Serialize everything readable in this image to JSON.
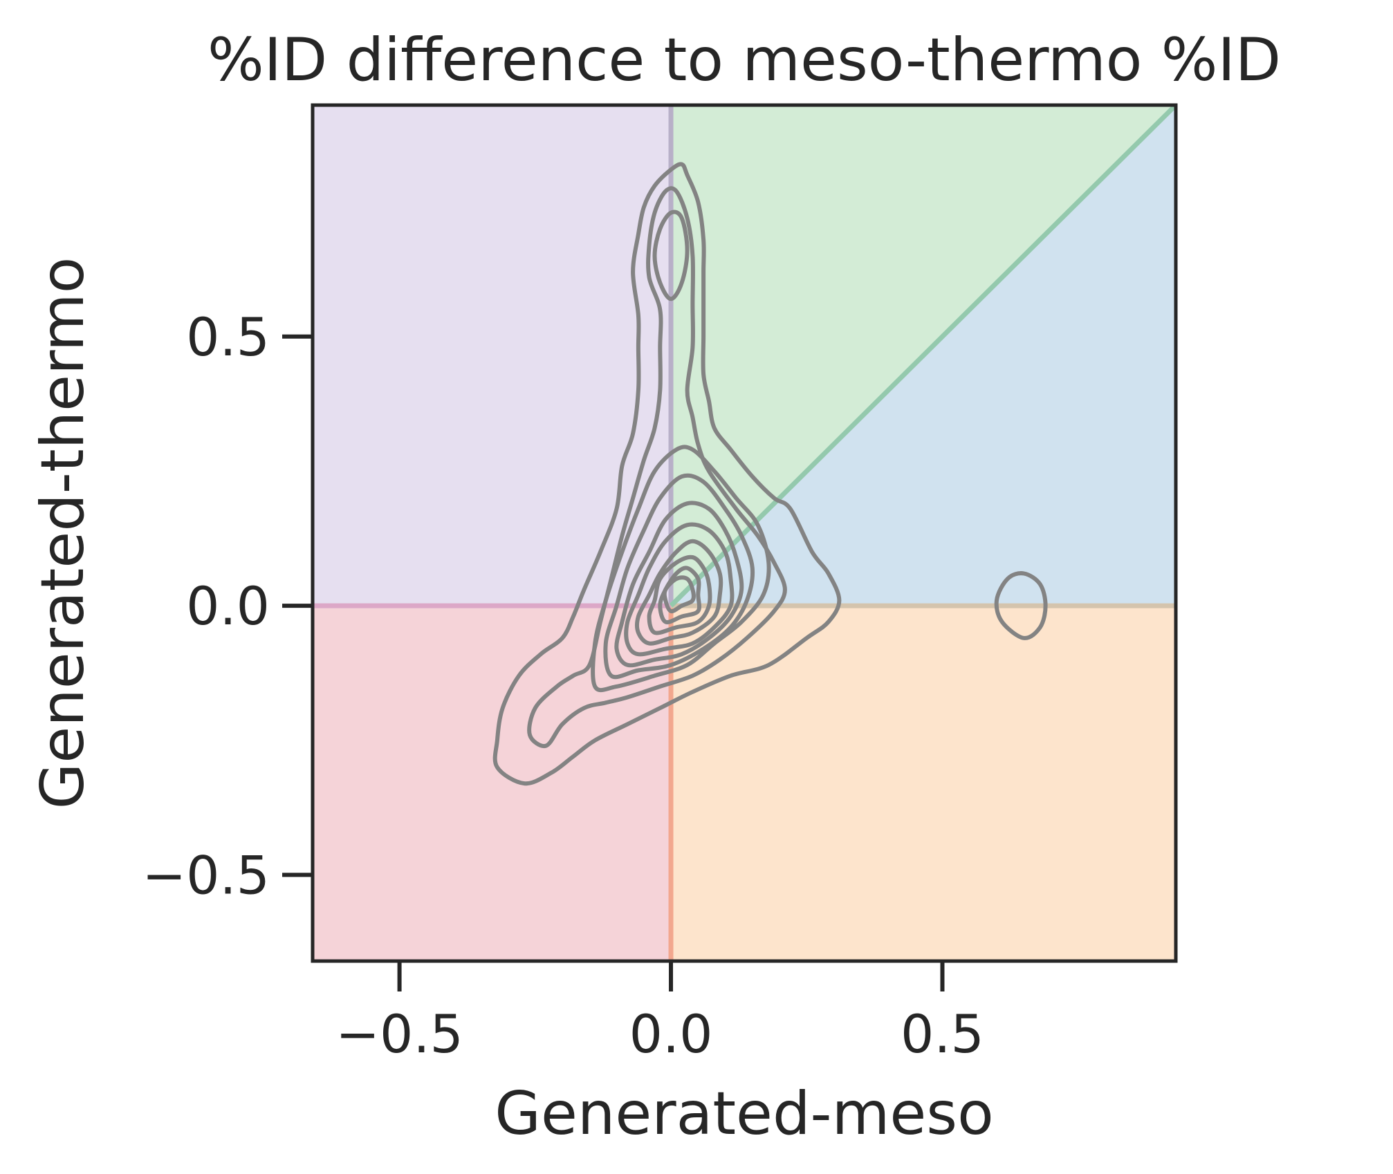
{
  "chart_data": {
    "type": "kde_contour",
    "title": "%ID difference to meso-thermo %ID",
    "xlabel": "Generated-meso",
    "ylabel": "Generated-thermo",
    "xlim": [
      -0.66,
      0.93
    ],
    "ylim": [
      -0.66,
      0.93
    ],
    "x_ticks": [
      -0.5,
      0.0,
      0.5
    ],
    "y_ticks": [
      -0.5,
      0.0,
      0.5
    ],
    "x_tick_labels": [
      "−0.5",
      "0.0",
      "0.5"
    ],
    "y_tick_labels": [
      "−0.5",
      "0.0",
      "0.5"
    ],
    "grid": false,
    "regions": [
      {
        "name": "upper-left",
        "polygon": [
          [
            -0.66,
            0
          ],
          [
            0,
            0
          ],
          [
            0,
            0.93
          ],
          [
            -0.66,
            0.93
          ]
        ],
        "color": "#e6dff0"
      },
      {
        "name": "upper-diagonal",
        "polygon": [
          [
            0,
            0
          ],
          [
            0.93,
            0.93
          ],
          [
            0,
            0.93
          ]
        ],
        "color": "#d3ecd6"
      },
      {
        "name": "lower-diagonal",
        "polygon": [
          [
            0,
            0
          ],
          [
            0.93,
            0
          ],
          [
            0.93,
            0.93
          ]
        ],
        "color": "#d0e2ef"
      },
      {
        "name": "lower-right",
        "polygon": [
          [
            0,
            -0.66
          ],
          [
            0.93,
            -0.66
          ],
          [
            0.93,
            0
          ],
          [
            0,
            0
          ]
        ],
        "color": "#fde4cc"
      },
      {
        "name": "lower-left",
        "polygon": [
          [
            -0.66,
            -0.66
          ],
          [
            0,
            -0.66
          ],
          [
            0,
            0
          ],
          [
            -0.66,
            0
          ]
        ],
        "color": "#f5d3d8"
      }
    ],
    "boundaries": [
      {
        "name": "vertical-upper",
        "points": [
          [
            0,
            0
          ],
          [
            0,
            0.93
          ]
        ],
        "color": "#b8b0c8"
      },
      {
        "name": "vertical-lower",
        "points": [
          [
            0,
            -0.66
          ],
          [
            0,
            0
          ]
        ],
        "color": "#f2a78e"
      },
      {
        "name": "horizontal-left",
        "points": [
          [
            -0.66,
            0
          ],
          [
            0,
            0
          ]
        ],
        "color": "#dca7c7"
      },
      {
        "name": "horizontal-right",
        "points": [
          [
            0,
            0
          ],
          [
            0.93,
            0
          ]
        ],
        "color": "#d4c4ad"
      },
      {
        "name": "diagonal",
        "points": [
          [
            0,
            0
          ],
          [
            0.93,
            0.93
          ]
        ],
        "color": "#94c9ad"
      }
    ],
    "contour_color": "#838383",
    "contours": [
      {
        "level": 1,
        "points": [
          [
            -0.27,
            -0.33
          ],
          [
            -0.22,
            -0.31
          ],
          [
            -0.18,
            -0.28
          ],
          [
            -0.14,
            -0.25
          ],
          [
            -0.08,
            -0.22
          ],
          [
            -0.02,
            -0.19
          ],
          [
            0.04,
            -0.16
          ],
          [
            0.11,
            -0.13
          ],
          [
            0.18,
            -0.11
          ],
          [
            0.25,
            -0.06
          ],
          [
            0.29,
            -0.03
          ],
          [
            0.31,
            0.01
          ],
          [
            0.29,
            0.06
          ],
          [
            0.26,
            0.1
          ],
          [
            0.22,
            0.18
          ],
          [
            0.19,
            0.2
          ],
          [
            0.15,
            0.24
          ],
          [
            0.11,
            0.29
          ],
          [
            0.08,
            0.33
          ],
          [
            0.07,
            0.38
          ],
          [
            0.06,
            0.43
          ],
          [
            0.06,
            0.5
          ],
          [
            0.06,
            0.55
          ],
          [
            0.06,
            0.62
          ],
          [
            0.06,
            0.68
          ],
          [
            0.05,
            0.75
          ],
          [
            0.03,
            0.8
          ],
          [
            0.02,
            0.82
          ],
          [
            0.0,
            0.81
          ],
          [
            -0.03,
            0.78
          ],
          [
            -0.05,
            0.74
          ],
          [
            -0.06,
            0.69
          ],
          [
            -0.07,
            0.62
          ],
          [
            -0.06,
            0.54
          ],
          [
            -0.06,
            0.48
          ],
          [
            -0.06,
            0.4
          ],
          [
            -0.07,
            0.32
          ],
          [
            -0.09,
            0.26
          ],
          [
            -0.1,
            0.18
          ],
          [
            -0.13,
            0.1
          ],
          [
            -0.16,
            0.03
          ],
          [
            -0.18,
            -0.02
          ],
          [
            -0.2,
            -0.06
          ],
          [
            -0.24,
            -0.09
          ],
          [
            -0.28,
            -0.13
          ],
          [
            -0.31,
            -0.19
          ],
          [
            -0.32,
            -0.25
          ],
          [
            -0.32,
            -0.3
          ],
          [
            -0.27,
            -0.33
          ]
        ]
      },
      {
        "level": 2,
        "points": [
          [
            -0.23,
            -0.26
          ],
          [
            -0.2,
            -0.22
          ],
          [
            -0.16,
            -0.19
          ],
          [
            -0.12,
            -0.18
          ],
          [
            -0.08,
            -0.17
          ],
          [
            -0.02,
            -0.15
          ],
          [
            0.04,
            -0.13
          ],
          [
            0.09,
            -0.1
          ],
          [
            0.14,
            -0.06
          ],
          [
            0.19,
            -0.01
          ],
          [
            0.21,
            0.03
          ],
          [
            0.19,
            0.08
          ],
          [
            0.16,
            0.13
          ],
          [
            0.12,
            0.18
          ],
          [
            0.07,
            0.25
          ],
          [
            0.05,
            0.3
          ],
          [
            0.04,
            0.35
          ],
          [
            0.03,
            0.4
          ],
          [
            0.04,
            0.48
          ],
          [
            0.04,
            0.56
          ],
          [
            0.04,
            0.65
          ],
          [
            0.03,
            0.72
          ],
          [
            0.01,
            0.77
          ],
          [
            -0.01,
            0.77
          ],
          [
            -0.03,
            0.73
          ],
          [
            -0.04,
            0.67
          ],
          [
            -0.04,
            0.61
          ],
          [
            -0.02,
            0.55
          ],
          [
            -0.02,
            0.48
          ],
          [
            -0.02,
            0.4
          ],
          [
            -0.03,
            0.33
          ],
          [
            -0.05,
            0.27
          ],
          [
            -0.07,
            0.2
          ],
          [
            -0.09,
            0.13
          ],
          [
            -0.11,
            0.05
          ],
          [
            -0.13,
            -0.03
          ],
          [
            -0.15,
            -0.11
          ],
          [
            -0.18,
            -0.13
          ],
          [
            -0.21,
            -0.15
          ],
          [
            -0.25,
            -0.19
          ],
          [
            -0.26,
            -0.24
          ],
          [
            -0.23,
            -0.26
          ]
        ]
      },
      {
        "level": 3,
        "points": [
          [
            0.0,
            0.57
          ],
          [
            0.02,
            0.6
          ],
          [
            0.03,
            0.66
          ],
          [
            0.02,
            0.72
          ],
          [
            0.0,
            0.73
          ],
          [
            -0.02,
            0.7
          ],
          [
            -0.03,
            0.65
          ],
          [
            -0.02,
            0.6
          ],
          [
            0.0,
            0.57
          ]
        ]
      },
      {
        "level": 4,
        "points": [
          [
            -0.14,
            -0.15
          ],
          [
            -0.1,
            -0.15
          ],
          [
            -0.03,
            -0.13
          ],
          [
            0.03,
            -0.11
          ],
          [
            0.08,
            -0.07
          ],
          [
            0.13,
            -0.03
          ],
          [
            0.17,
            0.02
          ],
          [
            0.18,
            0.08
          ],
          [
            0.16,
            0.15
          ],
          [
            0.12,
            0.2
          ],
          [
            0.08,
            0.25
          ],
          [
            0.04,
            0.29
          ],
          [
            0.01,
            0.29
          ],
          [
            -0.03,
            0.25
          ],
          [
            -0.06,
            0.18
          ],
          [
            -0.09,
            0.1
          ],
          [
            -0.12,
            0.01
          ],
          [
            -0.14,
            -0.07
          ],
          [
            -0.14,
            -0.15
          ]
        ]
      },
      {
        "level": 5,
        "points": [
          [
            -0.11,
            -0.13
          ],
          [
            -0.06,
            -0.12
          ],
          [
            0.0,
            -0.11
          ],
          [
            0.06,
            -0.08
          ],
          [
            0.11,
            -0.04
          ],
          [
            0.14,
            0.01
          ],
          [
            0.15,
            0.07
          ],
          [
            0.13,
            0.13
          ],
          [
            0.1,
            0.18
          ],
          [
            0.06,
            0.23
          ],
          [
            0.02,
            0.24
          ],
          [
            -0.02,
            0.2
          ],
          [
            -0.05,
            0.14
          ],
          [
            -0.08,
            0.07
          ],
          [
            -0.1,
            0.0
          ],
          [
            -0.12,
            -0.07
          ],
          [
            -0.11,
            -0.13
          ]
        ]
      },
      {
        "level": 6,
        "points": [
          [
            -0.08,
            -0.11
          ],
          [
            -0.03,
            -0.1
          ],
          [
            0.02,
            -0.09
          ],
          [
            0.07,
            -0.06
          ],
          [
            0.11,
            -0.02
          ],
          [
            0.13,
            0.03
          ],
          [
            0.12,
            0.09
          ],
          [
            0.1,
            0.14
          ],
          [
            0.07,
            0.18
          ],
          [
            0.03,
            0.19
          ],
          [
            -0.01,
            0.16
          ],
          [
            -0.04,
            0.1
          ],
          [
            -0.07,
            0.04
          ],
          [
            -0.09,
            -0.03
          ],
          [
            -0.1,
            -0.08
          ],
          [
            -0.08,
            -0.11
          ]
        ]
      },
      {
        "level": 7,
        "points": [
          [
            -0.06,
            -0.09
          ],
          [
            -0.01,
            -0.08
          ],
          [
            0.04,
            -0.07
          ],
          [
            0.08,
            -0.04
          ],
          [
            0.11,
            0.0
          ],
          [
            0.11,
            0.05
          ],
          [
            0.1,
            0.1
          ],
          [
            0.07,
            0.14
          ],
          [
            0.03,
            0.15
          ],
          [
            -0.01,
            0.12
          ],
          [
            -0.04,
            0.07
          ],
          [
            -0.06,
            0.02
          ],
          [
            -0.08,
            -0.03
          ],
          [
            -0.08,
            -0.07
          ],
          [
            -0.06,
            -0.09
          ]
        ]
      },
      {
        "level": 8,
        "points": [
          [
            -0.04,
            -0.07
          ],
          [
            0.0,
            -0.06
          ],
          [
            0.04,
            -0.05
          ],
          [
            0.08,
            -0.02
          ],
          [
            0.09,
            0.02
          ],
          [
            0.09,
            0.06
          ],
          [
            0.07,
            0.1
          ],
          [
            0.04,
            0.12
          ],
          [
            0.01,
            0.1
          ],
          [
            -0.02,
            0.06
          ],
          [
            -0.04,
            0.02
          ],
          [
            -0.06,
            -0.02
          ],
          [
            -0.06,
            -0.05
          ],
          [
            -0.04,
            -0.07
          ]
        ]
      },
      {
        "level": 9,
        "points": [
          [
            -0.03,
            -0.05
          ],
          [
            0.01,
            -0.04
          ],
          [
            0.05,
            -0.03
          ],
          [
            0.07,
            0.0
          ],
          [
            0.07,
            0.04
          ],
          [
            0.06,
            0.07
          ],
          [
            0.04,
            0.09
          ],
          [
            0.01,
            0.08
          ],
          [
            -0.02,
            0.05
          ],
          [
            -0.03,
            0.01
          ],
          [
            -0.04,
            -0.02
          ],
          [
            -0.03,
            -0.05
          ]
        ]
      },
      {
        "level": 10,
        "points": [
          [
            -0.01,
            -0.03
          ],
          [
            0.02,
            -0.02
          ],
          [
            0.05,
            -0.01
          ],
          [
            0.05,
            0.02
          ],
          [
            0.05,
            0.05
          ],
          [
            0.03,
            0.07
          ],
          [
            0.01,
            0.06
          ],
          [
            -0.01,
            0.03
          ],
          [
            -0.02,
            0.0
          ],
          [
            -0.01,
            -0.03
          ]
        ]
      },
      {
        "level": 11,
        "points": [
          [
            0.0,
            -0.01
          ],
          [
            0.02,
            0.0
          ],
          [
            0.04,
            0.01
          ],
          [
            0.04,
            0.03
          ],
          [
            0.03,
            0.05
          ],
          [
            0.01,
            0.05
          ],
          [
            -0.01,
            0.03
          ],
          [
            -0.01,
            0.01
          ],
          [
            0.0,
            -0.01
          ]
        ]
      },
      {
        "level": 1,
        "points": [
          [
            0.65,
            -0.06
          ],
          [
            0.68,
            -0.04
          ],
          [
            0.69,
            0.0
          ],
          [
            0.68,
            0.04
          ],
          [
            0.65,
            0.06
          ],
          [
            0.62,
            0.05
          ],
          [
            0.6,
            0.01
          ],
          [
            0.61,
            -0.03
          ],
          [
            0.65,
            -0.06
          ]
        ]
      }
    ]
  }
}
